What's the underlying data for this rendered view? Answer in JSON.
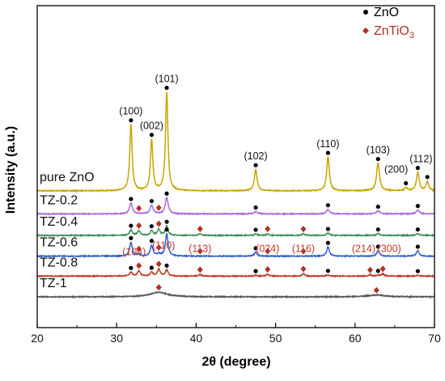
{
  "chart_data": {
    "type": "line",
    "xlabel": "2θ (degree)",
    "ylabel": "Intensity (a.u.)",
    "xlim": [
      20,
      70
    ],
    "x_ticks": [
      20,
      30,
      40,
      50,
      60,
      70
    ],
    "y_ticks_shown": false,
    "legend": {
      "placement": "top-right",
      "entries": [
        {
          "marker": "circle",
          "color": "#000000",
          "label": "ZnO",
          "label_parts": [
            "ZnO"
          ]
        },
        {
          "marker": "diamond",
          "color": "#b03024",
          "label": "ZnTiO3",
          "label_parts": [
            "ZnTiO",
            "3"
          ]
        }
      ]
    },
    "zno_peak_labels": [
      {
        "x": 31.8,
        "label": "(100)"
      },
      {
        "x": 34.4,
        "label": "(002)"
      },
      {
        "x": 36.3,
        "label": "(101)"
      },
      {
        "x": 47.5,
        "label": "(102)"
      },
      {
        "x": 56.6,
        "label": "(110)"
      },
      {
        "x": 62.9,
        "label": "(103)"
      },
      {
        "x": 66.4,
        "label": "(200)"
      },
      {
        "x": 67.9,
        "label": "(112)"
      }
    ],
    "znti_peak_labels": [
      {
        "x": 32.8,
        "label": "(104)"
      },
      {
        "x": 35.3,
        "label": "(110)"
      },
      {
        "x": 40.5,
        "label": "(113)"
      },
      {
        "x": 49.0,
        "label": "(024)"
      },
      {
        "x": 53.5,
        "label": "(116)"
      },
      {
        "x": 61.9,
        "label": "(214)"
      },
      {
        "x": 63.5,
        "label": "(300)"
      }
    ],
    "series": [
      {
        "name": "pure ZnO",
        "color": "#c8a400",
        "baseline": 6.9,
        "peaks": [
          {
            "x": 31.8,
            "h": 4.3,
            "w": 0.18
          },
          {
            "x": 34.4,
            "h": 3.3,
            "w": 0.18
          },
          {
            "x": 36.3,
            "h": 6.4,
            "w": 0.18
          },
          {
            "x": 47.5,
            "h": 1.4,
            "w": 0.2
          },
          {
            "x": 56.6,
            "h": 2.2,
            "w": 0.2
          },
          {
            "x": 62.9,
            "h": 1.8,
            "w": 0.22
          },
          {
            "x": 66.4,
            "h": 0.2,
            "w": 0.2
          },
          {
            "x": 67.9,
            "h": 1.2,
            "w": 0.2
          },
          {
            "x": 69.1,
            "h": 0.6,
            "w": 0.2
          }
        ],
        "zno_markers": [
          31.8,
          34.4,
          36.3,
          47.5,
          56.6,
          62.9,
          66.4,
          67.9,
          69.1
        ],
        "znti_markers": []
      },
      {
        "name": "TZ-0.2",
        "color": "#a86add",
        "baseline": 5.4,
        "peaks": [
          {
            "x": 31.8,
            "h": 0.7,
            "w": 0.22
          },
          {
            "x": 34.4,
            "h": 0.55,
            "w": 0.22
          },
          {
            "x": 36.3,
            "h": 1.05,
            "w": 0.22
          },
          {
            "x": 47.5,
            "h": 0.15,
            "w": 0.22
          },
          {
            "x": 56.6,
            "h": 0.3,
            "w": 0.22
          },
          {
            "x": 62.9,
            "h": 0.2,
            "w": 0.22
          },
          {
            "x": 67.9,
            "h": 0.25,
            "w": 0.22
          }
        ],
        "zno_markers": [
          31.8,
          34.4,
          36.3,
          47.5,
          56.6,
          62.9,
          67.9
        ],
        "znti_markers": [
          32.8,
          35.3
        ]
      },
      {
        "name": "TZ-0.4",
        "color": "#3c8f5a",
        "baseline": 4.0,
        "peaks": [
          {
            "x": 31.8,
            "h": 0.35,
            "w": 0.2
          },
          {
            "x": 32.8,
            "h": 0.3,
            "w": 0.2
          },
          {
            "x": 34.4,
            "h": 0.3,
            "w": 0.2
          },
          {
            "x": 35.3,
            "h": 0.4,
            "w": 0.2
          },
          {
            "x": 36.3,
            "h": 0.6,
            "w": 0.2
          },
          {
            "x": 40.5,
            "h": 0.1,
            "w": 0.2
          },
          {
            "x": 47.5,
            "h": 0.1,
            "w": 0.2
          },
          {
            "x": 49.0,
            "h": 0.1,
            "w": 0.2
          },
          {
            "x": 53.5,
            "h": 0.1,
            "w": 0.2
          },
          {
            "x": 56.6,
            "h": 0.15,
            "w": 0.2
          },
          {
            "x": 62.9,
            "h": 0.12,
            "w": 0.2
          },
          {
            "x": 67.9,
            "h": 0.12,
            "w": 0.2
          }
        ],
        "zno_markers": [
          31.8,
          34.4,
          36.3,
          47.5,
          56.6,
          62.9,
          67.9
        ],
        "znti_markers": [
          32.8,
          35.3,
          40.5,
          49.0,
          53.5
        ]
      },
      {
        "name": "TZ-0.6",
        "color": "#2f5fd1",
        "baseline": 2.65,
        "peaks": [
          {
            "x": 31.8,
            "h": 0.9,
            "w": 0.2
          },
          {
            "x": 32.8,
            "h": 0.1,
            "w": 0.2
          },
          {
            "x": 34.4,
            "h": 0.7,
            "w": 0.2
          },
          {
            "x": 35.3,
            "h": 0.15,
            "w": 0.2
          },
          {
            "x": 36.3,
            "h": 1.45,
            "w": 0.2
          },
          {
            "x": 47.5,
            "h": 0.25,
            "w": 0.2
          },
          {
            "x": 56.6,
            "h": 0.6,
            "w": 0.2
          },
          {
            "x": 62.9,
            "h": 0.35,
            "w": 0.2
          },
          {
            "x": 67.9,
            "h": 0.35,
            "w": 0.2
          }
        ],
        "zno_markers": [
          31.8,
          34.4,
          36.3,
          47.5,
          56.6,
          62.9,
          67.9
        ],
        "znti_markers": [
          32.8,
          35.3,
          40.5,
          49.0,
          53.5
        ]
      },
      {
        "name": "TZ-0.8",
        "color": "#c0392b",
        "baseline": 1.35,
        "peaks": [
          {
            "x": 31.8,
            "h": 0.25,
            "w": 0.2
          },
          {
            "x": 32.8,
            "h": 0.35,
            "w": 0.2
          },
          {
            "x": 34.4,
            "h": 0.25,
            "w": 0.2
          },
          {
            "x": 35.3,
            "h": 0.45,
            "w": 0.2
          },
          {
            "x": 36.3,
            "h": 0.4,
            "w": 0.2
          },
          {
            "x": 40.5,
            "h": 0.1,
            "w": 0.2
          },
          {
            "x": 47.5,
            "h": 0.06,
            "w": 0.2
          },
          {
            "x": 49.0,
            "h": 0.12,
            "w": 0.2
          },
          {
            "x": 53.5,
            "h": 0.15,
            "w": 0.2
          },
          {
            "x": 56.6,
            "h": 0.08,
            "w": 0.2
          },
          {
            "x": 61.9,
            "h": 0.08,
            "w": 0.2
          },
          {
            "x": 62.9,
            "h": 0.06,
            "w": 0.2
          },
          {
            "x": 63.5,
            "h": 0.15,
            "w": 0.2
          },
          {
            "x": 67.9,
            "h": 0.06,
            "w": 0.2
          }
        ],
        "zno_markers": [
          31.8,
          34.4,
          36.3,
          47.5,
          56.6,
          62.9,
          67.9
        ],
        "znti_markers": [
          32.8,
          35.3,
          40.5,
          49.0,
          53.5,
          61.9,
          63.5
        ]
      },
      {
        "name": "TZ-1",
        "color": "#555555",
        "baseline": 0.0,
        "peaks": [
          {
            "x": 35.3,
            "h": 0.3,
            "w": 1.3
          },
          {
            "x": 62.7,
            "h": 0.12,
            "w": 1.3
          }
        ],
        "zno_markers": [],
        "znti_markers": [
          35.3,
          62.7
        ]
      }
    ]
  }
}
